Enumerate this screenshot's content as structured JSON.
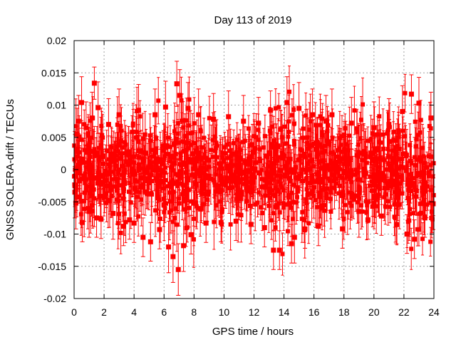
{
  "chart_data": {
    "type": "scatter",
    "title": "Day 113 of 2019",
    "xlabel": "GPS time / hours",
    "ylabel": "GNSS SOLERA-drift / TECUs",
    "xlim": [
      0,
      24
    ],
    "ylim": [
      -0.02,
      0.02
    ],
    "x_ticks": [
      "0",
      "2",
      "4",
      "6",
      "8",
      "10",
      "12",
      "14",
      "16",
      "18",
      "20",
      "22",
      "24"
    ],
    "y_ticks": [
      "0.02",
      "0.015",
      "0.01",
      "0.005",
      "0",
      "-0.005",
      "-0.01",
      "-0.015",
      "-0.02"
    ],
    "grid": true,
    "legend": "none",
    "series": [
      {
        "color": "#ff0000",
        "marker": "filled-square",
        "error_bars": true,
        "points": [
          {
            "x": 0.05,
            "y": -0.0035,
            "err": 0.004
          },
          {
            "x": 0.12,
            "y": -0.0052,
            "err": 0.004
          },
          {
            "x": 0.2,
            "y": 0.0055,
            "err": 0.004
          },
          {
            "x": 0.3,
            "y": 0.0075,
            "err": 0.004
          },
          {
            "x": 0.5,
            "y": 0.0104,
            "err": 0.004
          },
          {
            "x": 0.55,
            "y": -0.0082,
            "err": 0.003
          },
          {
            "x": 0.8,
            "y": 0.0065,
            "err": 0.004
          },
          {
            "x": 1.0,
            "y": -0.0065,
            "err": 0.004
          },
          {
            "x": 1.2,
            "y": 0.008,
            "err": 0.004
          },
          {
            "x": 1.35,
            "y": 0.0134,
            "err": 0.0025
          },
          {
            "x": 1.5,
            "y": -0.0075,
            "err": 0.003
          },
          {
            "x": 1.6,
            "y": 0.0096,
            "err": 0.004
          },
          {
            "x": 1.8,
            "y": -0.0077,
            "err": 0.003
          },
          {
            "x": 2.3,
            "y": 0.007,
            "err": 0.004
          },
          {
            "x": 2.6,
            "y": -0.0068,
            "err": 0.004
          },
          {
            "x": 3.0,
            "y": 0.0085,
            "err": 0.004
          },
          {
            "x": 3.3,
            "y": -0.0088,
            "err": 0.003
          },
          {
            "x": 3.7,
            "y": -0.0078,
            "err": 0.003
          },
          {
            "x": 4.0,
            "y": -0.0083,
            "err": 0.003
          },
          {
            "x": 4.3,
            "y": 0.0092,
            "err": 0.004
          },
          {
            "x": 4.6,
            "y": -0.0105,
            "err": 0.003
          },
          {
            "x": 5.1,
            "y": -0.0112,
            "err": 0.003
          },
          {
            "x": 5.4,
            "y": 0.0085,
            "err": 0.004
          },
          {
            "x": 5.7,
            "y": -0.0093,
            "err": 0.003
          },
          {
            "x": 6.1,
            "y": 0.0097,
            "err": 0.004
          },
          {
            "x": 6.3,
            "y": -0.012,
            "err": 0.004
          },
          {
            "x": 6.6,
            "y": -0.0135,
            "err": 0.004
          },
          {
            "x": 6.85,
            "y": 0.0133,
            "err": 0.0035
          },
          {
            "x": 6.95,
            "y": -0.0155,
            "err": 0.004
          },
          {
            "x": 7.05,
            "y": 0.0115,
            "err": 0.004
          },
          {
            "x": 7.3,
            "y": -0.0118,
            "err": 0.004
          },
          {
            "x": 7.6,
            "y": 0.0095,
            "err": 0.004
          },
          {
            "x": 7.8,
            "y": -0.0101,
            "err": 0.003
          },
          {
            "x": 8.3,
            "y": 0.0085,
            "err": 0.004
          },
          {
            "x": 8.8,
            "y": -0.0083,
            "err": 0.003
          },
          {
            "x": 9.3,
            "y": 0.0078,
            "err": 0.004
          },
          {
            "x": 9.8,
            "y": -0.0082,
            "err": 0.003
          },
          {
            "x": 10.3,
            "y": 0.0082,
            "err": 0.004
          },
          {
            "x": 10.8,
            "y": -0.008,
            "err": 0.003
          },
          {
            "x": 11.3,
            "y": 0.0075,
            "err": 0.004
          },
          {
            "x": 11.8,
            "y": -0.0085,
            "err": 0.003
          },
          {
            "x": 12.3,
            "y": 0.0072,
            "err": 0.004
          },
          {
            "x": 12.7,
            "y": -0.009,
            "err": 0.003
          },
          {
            "x": 13.1,
            "y": 0.0092,
            "err": 0.003
          },
          {
            "x": 13.3,
            "y": -0.0125,
            "err": 0.003
          },
          {
            "x": 13.7,
            "y": -0.0125,
            "err": 0.003
          },
          {
            "x": 14.2,
            "y": 0.0104,
            "err": 0.004
          },
          {
            "x": 14.5,
            "y": -0.0115,
            "err": 0.003
          },
          {
            "x": 14.7,
            "y": -0.0105,
            "err": 0.004
          },
          {
            "x": 15.0,
            "y": 0.0095,
            "err": 0.004
          },
          {
            "x": 15.4,
            "y": -0.0092,
            "err": 0.003
          },
          {
            "x": 15.9,
            "y": 0.0085,
            "err": 0.004
          },
          {
            "x": 16.3,
            "y": -0.0088,
            "err": 0.003
          },
          {
            "x": 16.8,
            "y": 0.0075,
            "err": 0.004
          },
          {
            "x": 17.2,
            "y": 0.0085,
            "err": 0.004
          },
          {
            "x": 17.9,
            "y": -0.0092,
            "err": 0.003
          },
          {
            "x": 18.5,
            "y": 0.0072,
            "err": 0.004
          },
          {
            "x": 19.0,
            "y": -0.0065,
            "err": 0.004
          },
          {
            "x": 19.6,
            "y": -0.0078,
            "err": 0.003
          },
          {
            "x": 20.0,
            "y": 0.0065,
            "err": 0.004
          },
          {
            "x": 20.5,
            "y": -0.0072,
            "err": 0.003
          },
          {
            "x": 21.0,
            "y": 0.007,
            "err": 0.004
          },
          {
            "x": 21.5,
            "y": -0.0085,
            "err": 0.003
          },
          {
            "x": 21.9,
            "y": 0.009,
            "err": 0.004
          },
          {
            "x": 22.2,
            "y": -0.01,
            "err": 0.003
          },
          {
            "x": 22.5,
            "y": 0.0117,
            "err": 0.003
          },
          {
            "x": 22.7,
            "y": -0.0108,
            "err": 0.003
          },
          {
            "x": 23.0,
            "y": 0.0103,
            "err": 0.004
          },
          {
            "x": 23.4,
            "y": -0.0075,
            "err": 0.003
          },
          {
            "x": 23.8,
            "y": 0.008,
            "err": 0.004
          },
          {
            "x": 23.95,
            "y": -0.0053,
            "err": 0.004
          }
        ]
      }
    ]
  }
}
